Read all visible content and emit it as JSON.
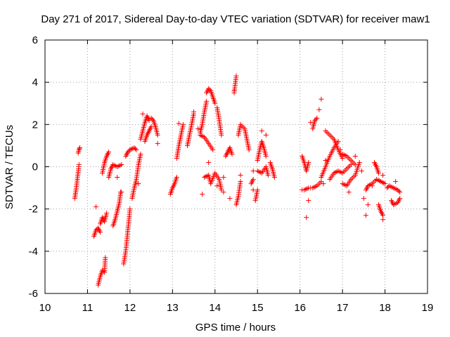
{
  "chart_data": {
    "type": "scatter",
    "title": "Day 271 of 2017, Sidereal Day-to-day VTEC variation (SDTVAR) for receiver maw1",
    "xlabel": "GPS time / hours",
    "ylabel": "SDTVAR / TECUs",
    "xlim": [
      10,
      19
    ],
    "ylim": [
      -6,
      6
    ],
    "xticks": [
      "10",
      "11",
      "12",
      "13",
      "14",
      "15",
      "16",
      "17",
      "18",
      "19"
    ],
    "yticks": [
      "-6",
      "-4",
      "-2",
      "0",
      "2",
      "4",
      "6"
    ],
    "grid": true,
    "marker": "+",
    "marker_color": "#ff0000",
    "segments": [
      [
        [
          10.7,
          -1.5
        ],
        [
          10.73,
          -1.1
        ],
        [
          10.76,
          -0.6
        ],
        [
          10.79,
          -0.1
        ],
        [
          10.8,
          0.1
        ]
      ],
      [
        [
          10.78,
          0.65
        ],
        [
          10.8,
          0.8
        ],
        [
          10.82,
          0.9
        ]
      ],
      [
        [
          11.15,
          -3.3
        ],
        [
          11.2,
          -3.0
        ],
        [
          11.25,
          -2.9
        ],
        [
          11.3,
          -3.1
        ]
      ],
      [
        [
          11.3,
          -2.7
        ],
        [
          11.35,
          -2.4
        ],
        [
          11.4,
          -2.6
        ],
        [
          11.45,
          -2.2
        ]
      ],
      [
        [
          11.25,
          -5.6
        ],
        [
          11.3,
          -5.2
        ],
        [
          11.35,
          -4.9
        ],
        [
          11.4,
          -5.0
        ],
        [
          11.42,
          -4.3
        ]
      ],
      [
        [
          11.35,
          -0.3
        ],
        [
          11.4,
          0.2
        ],
        [
          11.45,
          0.5
        ],
        [
          11.5,
          0.7
        ]
      ],
      [
        [
          11.5,
          -0.5
        ],
        [
          11.55,
          -0.1
        ],
        [
          11.6,
          0.1
        ],
        [
          11.7,
          0.0
        ],
        [
          11.8,
          0.1
        ]
      ],
      [
        [
          11.6,
          -2.8
        ],
        [
          11.65,
          -2.5
        ],
        [
          11.7,
          -2.1
        ],
        [
          11.75,
          -1.7
        ],
        [
          11.78,
          -1.2
        ]
      ],
      [
        [
          11.85,
          -4.6
        ],
        [
          11.9,
          -4.0
        ],
        [
          11.93,
          -3.4
        ],
        [
          11.96,
          -2.8
        ],
        [
          12.0,
          -2.0
        ]
      ],
      [
        [
          11.9,
          0.5
        ],
        [
          11.95,
          0.7
        ],
        [
          12.0,
          0.8
        ],
        [
          12.1,
          0.9
        ],
        [
          12.15,
          0.8
        ]
      ],
      [
        [
          12.05,
          -1.5
        ],
        [
          12.1,
          -1.0
        ],
        [
          12.15,
          -0.6
        ],
        [
          12.2,
          0.1
        ],
        [
          12.25,
          0.6
        ]
      ],
      [
        [
          12.25,
          1.3
        ],
        [
          12.3,
          1.7
        ],
        [
          12.35,
          2.1
        ],
        [
          12.4,
          2.4
        ],
        [
          12.45,
          2.2
        ]
      ],
      [
        [
          12.35,
          1.2
        ],
        [
          12.4,
          1.5
        ],
        [
          12.45,
          1.7
        ],
        [
          12.5,
          1.9
        ]
      ],
      [
        [
          12.5,
          2.3
        ],
        [
          12.55,
          2.2
        ],
        [
          12.6,
          1.9
        ],
        [
          12.65,
          1.5
        ]
      ],
      [
        [
          12.95,
          -1.3
        ],
        [
          13.0,
          -1.0
        ],
        [
          13.05,
          -0.8
        ],
        [
          13.1,
          -0.5
        ]
      ],
      [
        [
          13.1,
          0.4
        ],
        [
          13.15,
          1.0
        ],
        [
          13.2,
          1.5
        ],
        [
          13.25,
          2.0
        ]
      ],
      [
        [
          13.35,
          1.0
        ],
        [
          13.4,
          1.5
        ],
        [
          13.45,
          2.0
        ],
        [
          13.5,
          2.5
        ]
      ],
      [
        [
          13.65,
          1.6
        ],
        [
          13.7,
          2.0
        ],
        [
          13.75,
          2.6
        ],
        [
          13.8,
          3.1
        ]
      ],
      [
        [
          13.8,
          3.5
        ],
        [
          13.85,
          3.7
        ],
        [
          13.9,
          3.6
        ],
        [
          13.95,
          3.3
        ],
        [
          14.0,
          3.0
        ]
      ],
      [
        [
          13.65,
          1.5
        ],
        [
          13.75,
          1.4
        ],
        [
          13.85,
          1.1
        ],
        [
          13.95,
          0.8
        ]
      ],
      [
        [
          13.75,
          -0.5
        ],
        [
          13.85,
          -0.4
        ],
        [
          13.9,
          -0.8
        ],
        [
          14.0,
          -0.3
        ],
        [
          14.1,
          -0.6
        ],
        [
          14.15,
          -1.1
        ]
      ],
      [
        [
          14.05,
          2.8
        ],
        [
          14.1,
          2.2
        ],
        [
          14.15,
          1.5
        ]
      ],
      [
        [
          14.25,
          0.5
        ],
        [
          14.3,
          0.7
        ],
        [
          14.35,
          0.9
        ],
        [
          14.4,
          0.6
        ]
      ],
      [
        [
          14.45,
          3.5
        ],
        [
          14.5,
          4.3
        ]
      ],
      [
        [
          14.5,
          -1.8
        ],
        [
          14.55,
          -1.4
        ],
        [
          14.6,
          -0.7
        ]
      ],
      [
        [
          14.55,
          1.5
        ],
        [
          14.6,
          2.0
        ],
        [
          14.7,
          1.8
        ],
        [
          14.75,
          1.3
        ],
        [
          14.8,
          0.8
        ]
      ],
      [
        [
          14.85,
          -0.8
        ],
        [
          14.9,
          -0.6
        ]
      ],
      [
        [
          14.95,
          -1.6
        ],
        [
          15.0,
          -1.1
        ]
      ],
      [
        [
          15.0,
          0.3
        ],
        [
          15.05,
          0.8
        ],
        [
          15.1,
          1.2
        ],
        [
          15.15,
          0.9
        ],
        [
          15.2,
          0.5
        ]
      ],
      [
        [
          15.0,
          -0.2
        ],
        [
          15.1,
          -0.3
        ],
        [
          15.2,
          0.0
        ],
        [
          15.25,
          -0.4
        ]
      ],
      [
        [
          15.3,
          0.2
        ],
        [
          15.35,
          -0.1
        ],
        [
          15.4,
          -0.5
        ]
      ],
      [
        [
          16.05,
          0.5
        ],
        [
          16.1,
          0.2
        ],
        [
          16.15,
          -0.2
        ],
        [
          16.2,
          0.2
        ]
      ],
      [
        [
          16.1,
          -1.1
        ],
        [
          16.2,
          -1.0
        ],
        [
          16.3,
          -1.0
        ],
        [
          16.4,
          -0.9
        ],
        [
          16.5,
          -0.7
        ]
      ],
      [
        [
          16.3,
          1.8
        ],
        [
          16.35,
          2.2
        ],
        [
          16.4,
          2.3
        ]
      ],
      [
        [
          16.5,
          -0.5
        ],
        [
          16.6,
          0.0
        ],
        [
          16.7,
          0.5
        ],
        [
          16.8,
          0.9
        ],
        [
          16.9,
          1.2
        ]
      ],
      [
        [
          16.6,
          1.7
        ],
        [
          16.7,
          1.5
        ],
        [
          16.8,
          1.3
        ],
        [
          16.9,
          0.8
        ],
        [
          17.0,
          0.4
        ]
      ],
      [
        [
          16.7,
          -0.6
        ],
        [
          16.8,
          -0.3
        ],
        [
          16.9,
          -0.2
        ],
        [
          17.0,
          -0.3
        ],
        [
          17.1,
          -0.1
        ],
        [
          17.2,
          0.1
        ]
      ],
      [
        [
          17.0,
          0.6
        ],
        [
          17.1,
          0.5
        ],
        [
          17.2,
          0.3
        ],
        [
          17.3,
          0.1
        ]
      ],
      [
        [
          17.0,
          -0.8
        ],
        [
          17.1,
          -0.9
        ],
        [
          17.2,
          -0.6
        ],
        [
          17.3,
          -0.4
        ],
        [
          17.4,
          0.2
        ]
      ],
      [
        [
          17.55,
          -1.1
        ],
        [
          17.6,
          -0.9
        ],
        [
          17.7,
          -0.8
        ],
        [
          17.8,
          -0.6
        ],
        [
          17.9,
          -0.7
        ],
        [
          18.0,
          -0.8
        ]
      ],
      [
        [
          17.75,
          0.2
        ],
        [
          17.8,
          0.0
        ],
        [
          17.85,
          -0.3
        ]
      ],
      [
        [
          17.85,
          -1.8
        ],
        [
          17.9,
          -2.1
        ],
        [
          17.95,
          -2.3
        ]
      ],
      [
        [
          18.05,
          -1.0
        ],
        [
          18.1,
          -0.9
        ],
        [
          18.2,
          -1.0
        ],
        [
          18.3,
          -1.1
        ],
        [
          18.35,
          -1.2
        ]
      ],
      [
        [
          18.15,
          -1.6
        ],
        [
          18.2,
          -1.8
        ],
        [
          18.3,
          -1.7
        ],
        [
          18.35,
          -1.5
        ]
      ]
    ],
    "points": [
      [
        11.2,
        -1.9
      ],
      [
        11.7,
        -0.5
      ],
      [
        11.8,
        -1.2
      ],
      [
        12.2,
        -0.8
      ],
      [
        12.3,
        2.5
      ],
      [
        12.65,
        1.1
      ],
      [
        13.15,
        2.05
      ],
      [
        13.5,
        2.6
      ],
      [
        13.6,
        1.8
      ],
      [
        13.7,
        -1.3
      ],
      [
        13.85,
        0.2
      ],
      [
        14.05,
        -0.9
      ],
      [
        14.2,
        -0.5
      ],
      [
        14.2,
        -1.2
      ],
      [
        14.35,
        -1.5
      ],
      [
        14.45,
        3.6
      ],
      [
        14.6,
        -0.4
      ],
      [
        14.9,
        -1.1
      ],
      [
        14.9,
        -0.2
      ],
      [
        15.1,
        1.7
      ],
      [
        15.2,
        1.5
      ],
      [
        16.05,
        -1.1
      ],
      [
        16.15,
        -2.4
      ],
      [
        16.2,
        -1.6
      ],
      [
        16.25,
        2.1
      ],
      [
        16.45,
        2.7
      ],
      [
        16.5,
        3.2
      ],
      [
        16.55,
        -0.8
      ],
      [
        16.6,
        0.3
      ],
      [
        16.95,
        0.8
      ],
      [
        17.15,
        -1.2
      ],
      [
        17.3,
        0.5
      ],
      [
        17.45,
        -0.2
      ],
      [
        17.5,
        -1.5
      ],
      [
        17.55,
        -2.3
      ],
      [
        17.6,
        -1.8
      ],
      [
        17.7,
        -0.9
      ],
      [
        17.95,
        -0.4
      ],
      [
        17.95,
        -2.5
      ],
      [
        18.25,
        -0.7
      ]
    ]
  }
}
